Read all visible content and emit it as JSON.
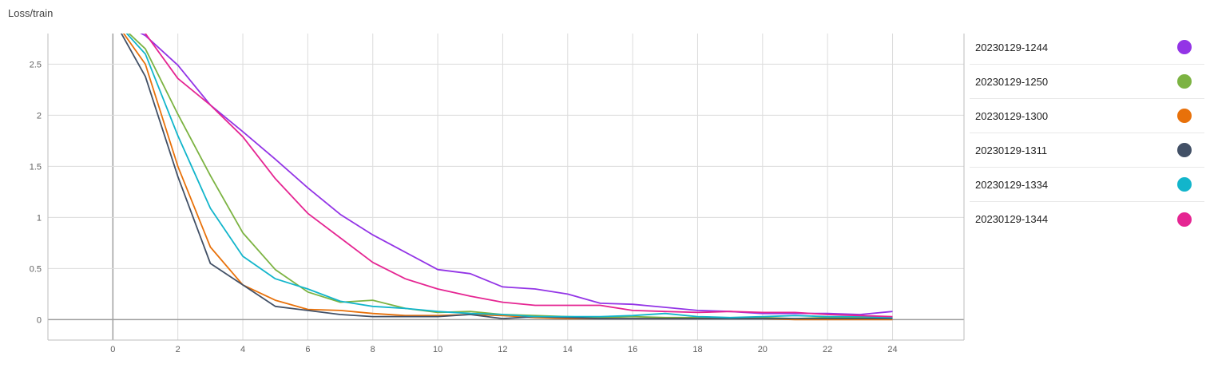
{
  "chart_data": {
    "type": "line",
    "title": "Loss/train",
    "xlabel": "",
    "ylabel": "",
    "xlim": [
      -2,
      26.2
    ],
    "ylim": [
      -0.2,
      2.8
    ],
    "xticks": [
      0,
      2,
      4,
      6,
      8,
      10,
      12,
      14,
      16,
      18,
      20,
      22,
      24
    ],
    "yticks": [
      0,
      0.5,
      1,
      1.5,
      2,
      2.5
    ],
    "grid": true,
    "legend_position": "right",
    "series": [
      {
        "name": "20230129-1244",
        "color": "#9334e6",
        "x": [
          0,
          1,
          2,
          3,
          4,
          5,
          6,
          7,
          8,
          9,
          10,
          11,
          12,
          13,
          14,
          15,
          16,
          17,
          18,
          19,
          20,
          21,
          22,
          23,
          24
        ],
        "y": [
          2.95,
          2.78,
          2.49,
          2.1,
          1.84,
          1.57,
          1.29,
          1.03,
          0.83,
          0.66,
          0.49,
          0.45,
          0.32,
          0.3,
          0.25,
          0.16,
          0.15,
          0.12,
          0.09,
          0.08,
          0.06,
          0.06,
          0.06,
          0.05,
          0.08
        ]
      },
      {
        "name": "20230129-1250",
        "color": "#7cb342",
        "x": [
          0,
          1,
          2,
          3,
          4,
          5,
          6,
          7,
          8,
          9,
          10,
          11,
          12,
          13,
          14,
          15,
          16,
          17,
          18,
          19,
          20,
          21,
          22,
          23,
          24
        ],
        "y": [
          2.95,
          2.65,
          2.01,
          1.41,
          0.85,
          0.49,
          0.27,
          0.17,
          0.19,
          0.11,
          0.07,
          0.08,
          0.05,
          0.04,
          0.03,
          0.02,
          0.03,
          0.02,
          0.02,
          0.01,
          0.02,
          0.01,
          0.02,
          0.02,
          0.02
        ]
      },
      {
        "name": "20230129-1300",
        "color": "#e8710a",
        "x": [
          0,
          1,
          2,
          3,
          4,
          5,
          6,
          7,
          8,
          9,
          10,
          11,
          12,
          13,
          14,
          15,
          16,
          17,
          18,
          19,
          20,
          21,
          22,
          23,
          24
        ],
        "y": [
          2.95,
          2.5,
          1.5,
          0.71,
          0.34,
          0.19,
          0.1,
          0.09,
          0.06,
          0.04,
          0.04,
          0.05,
          0.04,
          0.02,
          0.01,
          0.01,
          0.01,
          0.01,
          0.01,
          0.01,
          0.01,
          0.0,
          0.0,
          0.0,
          0.0
        ]
      },
      {
        "name": "20230129-1311",
        "color": "#425066",
        "x": [
          0,
          1,
          2,
          3,
          4,
          5,
          6,
          7,
          8,
          9,
          10,
          11,
          12,
          13,
          14,
          15,
          16,
          17,
          18,
          19,
          20,
          21,
          22,
          23,
          24
        ],
        "y": [
          2.95,
          2.38,
          1.4,
          0.55,
          0.34,
          0.13,
          0.09,
          0.05,
          0.03,
          0.03,
          0.03,
          0.05,
          0.01,
          0.03,
          0.02,
          0.01,
          0.01,
          0.01,
          0.01,
          0.01,
          0.01,
          0.01,
          0.01,
          0.01,
          0.01
        ]
      },
      {
        "name": "20230129-1334",
        "color": "#12b5cb",
        "x": [
          0,
          1,
          2,
          3,
          4,
          5,
          6,
          7,
          8,
          9,
          10,
          11,
          12,
          13,
          14,
          15,
          16,
          17,
          18,
          19,
          20,
          21,
          22,
          23,
          24
        ],
        "y": [
          2.95,
          2.6,
          1.8,
          1.09,
          0.62,
          0.4,
          0.3,
          0.18,
          0.13,
          0.11,
          0.08,
          0.06,
          0.05,
          0.03,
          0.03,
          0.03,
          0.04,
          0.06,
          0.03,
          0.02,
          0.03,
          0.04,
          0.03,
          0.03,
          0.02
        ]
      },
      {
        "name": "20230129-1344",
        "color": "#e52592",
        "x": [
          0,
          1,
          2,
          3,
          4,
          5,
          6,
          7,
          8,
          9,
          10,
          11,
          12,
          13,
          14,
          15,
          16,
          17,
          18,
          19,
          20,
          21,
          22,
          23,
          24
        ],
        "y": [
          2.95,
          2.8,
          2.36,
          2.1,
          1.79,
          1.38,
          1.04,
          0.8,
          0.56,
          0.4,
          0.3,
          0.23,
          0.17,
          0.14,
          0.14,
          0.14,
          0.09,
          0.08,
          0.07,
          0.08,
          0.07,
          0.07,
          0.05,
          0.04,
          0.03
        ]
      }
    ]
  }
}
